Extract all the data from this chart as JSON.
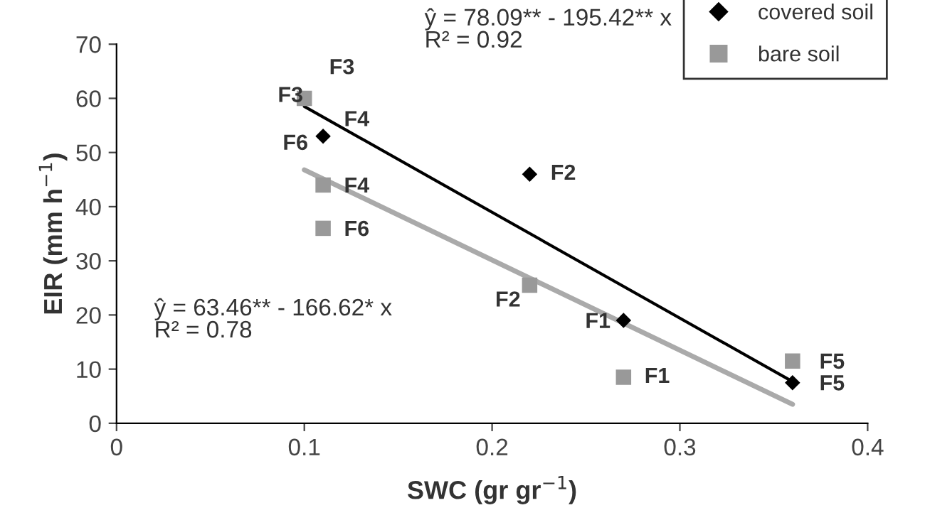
{
  "chart_data": {
    "type": "scatter",
    "xlabel": "SWC (gr gr$^{−1}$)",
    "ylabel": "EIR (mm h$^{−1}$)",
    "xlim": [
      0,
      0.4
    ],
    "ylim": [
      0,
      70
    ],
    "xticks": [
      0,
      0.1,
      0.2,
      0.3,
      0.4
    ],
    "yticks": [
      0,
      10,
      20,
      30,
      40,
      50,
      60,
      70
    ],
    "grid": false,
    "legend": "top right",
    "series": [
      {
        "name": "covered soil",
        "color": "#000000",
        "marker": "diamond",
        "x": [
          0.27,
          0.22,
          0.11,
          0.36
        ],
        "values": [
          19,
          46,
          53,
          7.5
        ]
      },
      {
        "name": "bare soil",
        "color": "#999999",
        "marker": "square",
        "x": [
          0.27,
          0.22,
          0.1,
          0.11,
          0.36,
          0.11
        ],
        "values": [
          8.5,
          25.5,
          60,
          44,
          11.5,
          36
        ]
      },
      {
        "type": "line",
        "color": "#000000",
        "marker": "none",
        "x": [
          0.1,
          0.36
        ],
        "values": [
          58.5,
          7.7
        ]
      },
      {
        "type": "line",
        "color": "#aaaaaa",
        "marker": "none",
        "x": [
          0.1,
          0.36
        ],
        "values": [
          46.8,
          3.5
        ]
      }
    ],
    "annotations": [
      "ŷ = 78.09** - 195.42** x\nR² = 0.92",
      "ŷ = 63.46** - 166.62* x\nR² = 0.78",
      "F3",
      {
        "text": "F3",
        "x": 0.1,
        "y": 60
      },
      {
        "text": "F4",
        "x": 0.11,
        "y": 53
      },
      {
        "text": "F6",
        "x": 0.11,
        "y": 53
      },
      {
        "text": "F2",
        "x": 0.22,
        "y": 46
      },
      {
        "text": "F4",
        "x": 0.11,
        "y": 44
      },
      {
        "text": "F6",
        "x": 0.11,
        "y": 36
      },
      {
        "text": "F2",
        "x": 0.22,
        "y": 25.5
      },
      {
        "text": "F1",
        "x": 0.27,
        "y": 19
      },
      {
        "text": "F1",
        "x": 0.27,
        "y": 8.5
      },
      {
        "text": "F5",
        "x": 0.36,
        "y": 11.5
      },
      {
        "text": "F5",
        "x": 0.36,
        "y": 7.5
      }
    ]
  }
}
